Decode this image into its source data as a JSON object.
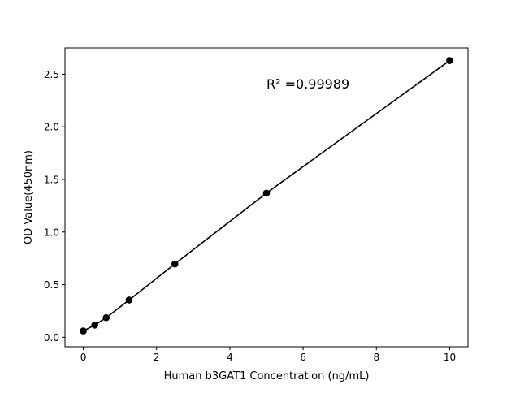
{
  "chart_data": {
    "type": "line",
    "title": "",
    "xlabel": "Human b3GAT1 Concentration (ng/mL)",
    "ylabel": "OD Value(450nm)",
    "xlim": [
      -0.5,
      10.5
    ],
    "ylim": [
      -0.09,
      2.75
    ],
    "xticks": [
      0,
      2,
      4,
      6,
      8,
      10
    ],
    "xtick_labels": [
      "0",
      "2",
      "4",
      "6",
      "8",
      "10"
    ],
    "yticks": [
      0.0,
      0.5,
      1.0,
      1.5,
      2.0,
      2.5
    ],
    "ytick_labels": [
      "0.0",
      "0.5",
      "1.0",
      "1.5",
      "2.0",
      "2.5"
    ],
    "grid": false,
    "annotation": "R² =0.99989",
    "series": [
      {
        "x": [
          0,
          0.3125,
          0.625,
          1.25,
          2.5,
          5,
          10
        ],
        "y": [
          0.06,
          0.116,
          0.186,
          0.354,
          0.697,
          1.37,
          2.63
        ],
        "color": "#000000",
        "marker": "circle"
      }
    ]
  }
}
